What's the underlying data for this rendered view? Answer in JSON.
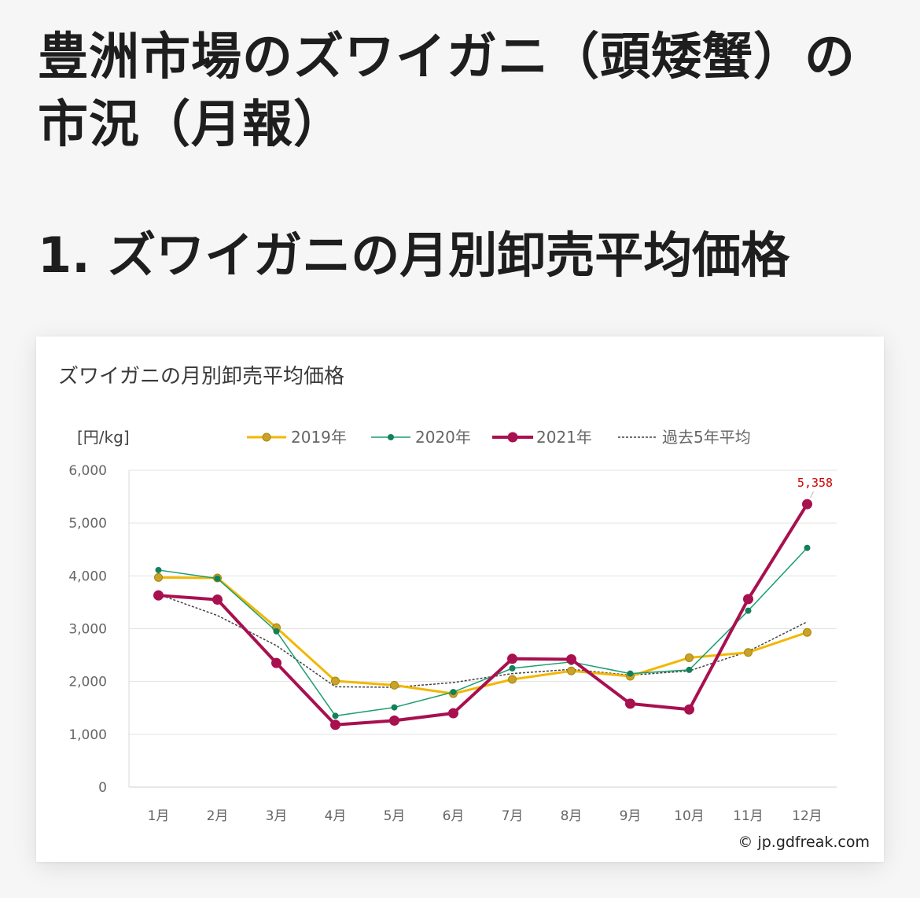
{
  "page": {
    "title": "豊洲市場のズワイガニ（頭矮蟹）の市況（月報）",
    "section_heading": "1. ズワイガニの月別卸売平均価格"
  },
  "chart_data": {
    "type": "line",
    "title": "ズワイガニの月別卸売平均価格",
    "ylabel": "[円/kg]",
    "xlabel": "",
    "categories": [
      "1月",
      "2月",
      "3月",
      "4月",
      "5月",
      "6月",
      "7月",
      "8月",
      "9月",
      "10月",
      "11月",
      "12月"
    ],
    "ylim": [
      0,
      6000
    ],
    "yticks": [
      0,
      1000,
      2000,
      3000,
      4000,
      5000,
      6000
    ],
    "ytick_labels": [
      "0",
      "1,000",
      "2,000",
      "3,000",
      "4,000",
      "5,000",
      "6,000"
    ],
    "grid": true,
    "legend_position": "top",
    "series": [
      {
        "name": "2019年",
        "color": "#f2b705",
        "values": [
          3970,
          3960,
          3020,
          2010,
          1930,
          1770,
          2040,
          2200,
          2100,
          2450,
          2550,
          2930
        ]
      },
      {
        "name": "2020年",
        "color": "#1a9e6e",
        "values": [
          4110,
          3950,
          2950,
          1350,
          1510,
          1800,
          2250,
          2370,
          2150,
          2220,
          3340,
          4530
        ]
      },
      {
        "name": "2021年",
        "color": "#a8104f",
        "values": [
          3630,
          3550,
          2350,
          1180,
          1260,
          1400,
          2430,
          2420,
          1580,
          1470,
          3560,
          5358
        ]
      },
      {
        "name": "過去5年平均",
        "color": "#444444",
        "values": [
          3650,
          3250,
          2680,
          1900,
          1890,
          1980,
          2150,
          2230,
          2120,
          2200,
          2570,
          3130
        ]
      }
    ],
    "annotations": [
      {
        "series": "2021年",
        "category": "12月",
        "text": "5,358"
      }
    ]
  },
  "copyright": "© jp.gdfreak.com"
}
